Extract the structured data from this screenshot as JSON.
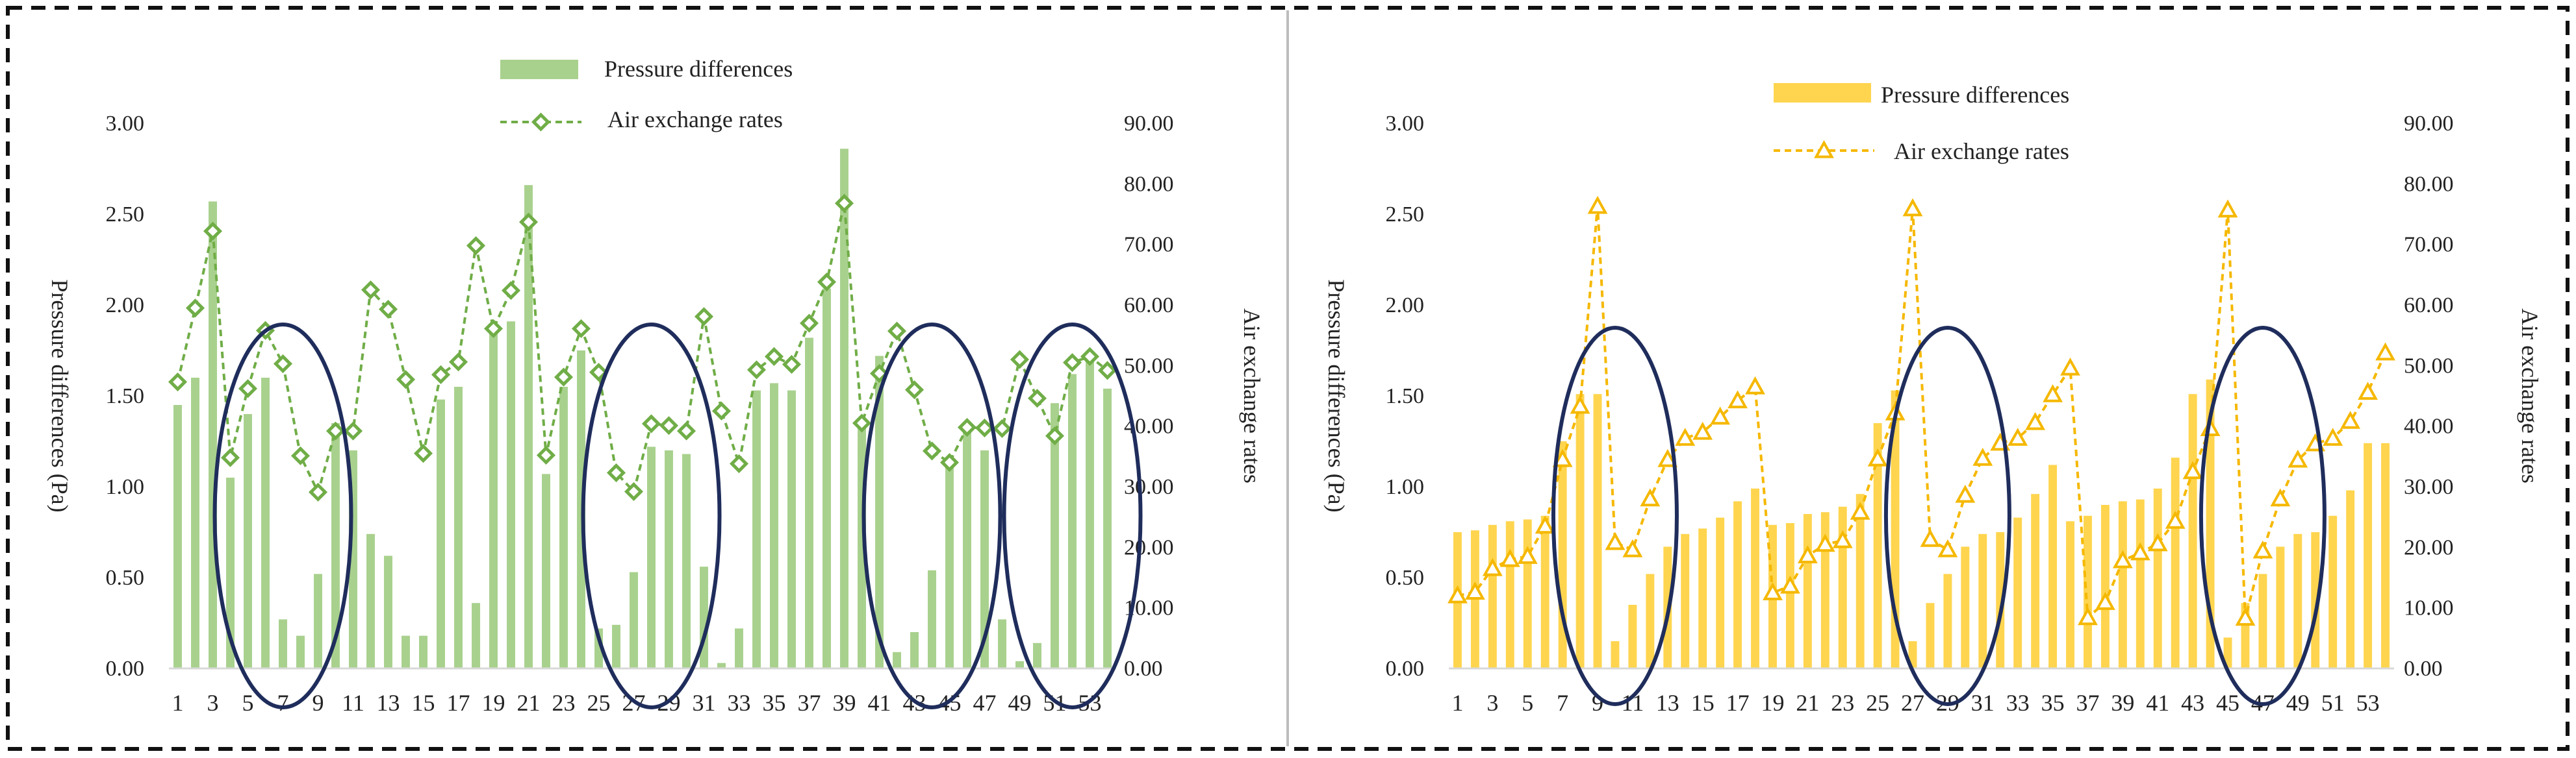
{
  "chart_data": [
    {
      "type": "bar+line",
      "title": "",
      "categories": [
        1,
        2,
        3,
        4,
        5,
        6,
        7,
        8,
        9,
        10,
        11,
        12,
        13,
        14,
        15,
        16,
        17,
        18,
        19,
        20,
        21,
        22,
        23,
        24,
        25,
        26,
        27,
        28,
        29,
        30,
        31,
        32,
        33,
        34,
        35,
        36,
        37,
        38,
        39,
        40,
        41,
        42,
        43,
        44,
        45,
        46,
        47,
        48,
        49,
        50,
        51,
        52,
        53,
        54
      ],
      "xtick_labels": [
        "1",
        "3",
        "5",
        "7",
        "9",
        "11",
        "13",
        "15",
        "17",
        "19",
        "21",
        "23",
        "25",
        "27",
        "29",
        "31",
        "33",
        "35",
        "37",
        "39",
        "41",
        "43",
        "45",
        "47",
        "49",
        "51",
        "53"
      ],
      "series": [
        {
          "name": "Pressure differences",
          "type": "bar",
          "axis": "left",
          "values": [
            1.45,
            1.6,
            2.57,
            1.05,
            1.4,
            1.6,
            0.27,
            0.18,
            0.52,
            1.35,
            1.2,
            0.74,
            0.62,
            0.18,
            0.18,
            1.48,
            1.55,
            0.36,
            1.85,
            1.91,
            2.66,
            1.07,
            1.55,
            1.75,
            0.22,
            0.24,
            0.53,
            1.22,
            1.2,
            1.18,
            0.56,
            0.03,
            0.22,
            1.53,
            1.57,
            1.53,
            1.82,
            2.09,
            2.86,
            1.32,
            1.72,
            0.09,
            0.2,
            0.54,
            1.16,
            1.3,
            1.2,
            0.27,
            0.04,
            0.14,
            1.46,
            1.62,
            1.72,
            1.54
          ]
        },
        {
          "name": "Air exchange rates",
          "type": "line",
          "axis": "right",
          "values": [
            47.3,
            59.5,
            72.2,
            34.8,
            46.2,
            55.8,
            50.3,
            35.1,
            29.1,
            39.2,
            39.2,
            62.5,
            59.3,
            47.7,
            35.5,
            48.5,
            50.6,
            69.8,
            56.1,
            62.4,
            73.7,
            35.2,
            48.1,
            56.1,
            48.9,
            32.3,
            29.2,
            40.4,
            40.1,
            39.2,
            58.1,
            42.5,
            33.8,
            49.3,
            51.5,
            50.2,
            57.0,
            63.8,
            76.8,
            40.5,
            48.7,
            55.7,
            46.0,
            35.9,
            34.0,
            39.8,
            39.7,
            39.6,
            51.0,
            44.6,
            38.4,
            50.5,
            51.5,
            49.2
          ]
        }
      ],
      "yleft": {
        "label": "Pressure differences (Pa)",
        "lim": [
          0,
          3
        ],
        "ticks": [
          "0.00",
          "0.50",
          "1.00",
          "1.50",
          "2.00",
          "2.50",
          "3.00"
        ]
      },
      "yright": {
        "label": "Air exchange rates",
        "lim": [
          0,
          90
        ],
        "ticks": [
          "0.00",
          "10.00",
          "20.00",
          "30.00",
          "40.00",
          "50.00",
          "60.00",
          "70.00",
          "80.00",
          "90.00"
        ]
      },
      "colors": {
        "bar": "#a9d18e",
        "line": "#70ad47",
        "ellipse": "#1f2d5c"
      },
      "marker": "diamond",
      "legend_position": "top-center",
      "highlight_ellipses_at_categories": [
        7,
        28,
        44,
        52
      ]
    },
    {
      "type": "bar+line",
      "title": "",
      "categories": [
        1,
        2,
        3,
        4,
        5,
        6,
        7,
        8,
        9,
        10,
        11,
        12,
        13,
        14,
        15,
        16,
        17,
        18,
        19,
        20,
        21,
        22,
        23,
        24,
        25,
        26,
        27,
        28,
        29,
        30,
        31,
        32,
        33,
        34,
        35,
        36,
        37,
        38,
        39,
        40,
        41,
        42,
        43,
        44,
        45,
        46,
        47,
        48,
        49,
        50,
        51,
        52,
        53,
        54
      ],
      "xtick_labels": [
        "1",
        "3",
        "5",
        "7",
        "9",
        "11",
        "13",
        "15",
        "17",
        "19",
        "21",
        "23",
        "25",
        "27",
        "29",
        "31",
        "33",
        "35",
        "37",
        "39",
        "41",
        "43",
        "45",
        "47",
        "49",
        "51",
        "53"
      ],
      "series": [
        {
          "name": "Pressure differences",
          "type": "bar",
          "axis": "left",
          "values": [
            0.75,
            0.76,
            0.79,
            0.81,
            0.82,
            0.84,
            1.25,
            1.51,
            1.51,
            0.15,
            0.35,
            0.52,
            0.67,
            0.74,
            0.77,
            0.83,
            0.92,
            0.99,
            0.79,
            0.8,
            0.85,
            0.86,
            0.89,
            0.96,
            1.35,
            1.53,
            0.15,
            0.36,
            0.52,
            0.67,
            0.74,
            0.75,
            0.83,
            0.96,
            1.12,
            0.81,
            0.84,
            0.9,
            0.92,
            0.93,
            0.99,
            1.16,
            1.51,
            1.59,
            0.17,
            0.36,
            0.52,
            0.67,
            0.74,
            0.75,
            0.84,
            0.98,
            1.24,
            1.24
          ]
        },
        {
          "name": "Air exchange rates",
          "type": "line",
          "axis": "right",
          "values": [
            12.0,
            12.6,
            16.5,
            18.0,
            18.5,
            23.5,
            34.5,
            43.3,
            76.3,
            20.8,
            19.6,
            28.0,
            34.5,
            38.0,
            39.0,
            41.5,
            44.2,
            46.5,
            12.5,
            13.6,
            18.6,
            20.5,
            21.1,
            25.8,
            34.6,
            42.2,
            75.9,
            21.3,
            19.6,
            28.6,
            34.7,
            37.2,
            38.0,
            40.6,
            45.2,
            49.6,
            8.4,
            10.9,
            17.8,
            19.1,
            20.6,
            24.3,
            32.5,
            39.6,
            75.7,
            8.3,
            19.4,
            28.0,
            34.4,
            37.1,
            38.0,
            40.8,
            45.6,
            52.1
          ]
        }
      ],
      "yleft": {
        "label": "Pressure differences (Pa)",
        "lim": [
          0,
          3
        ],
        "ticks": [
          "0.00",
          "0.50",
          "1.00",
          "1.50",
          "2.00",
          "2.50",
          "3.00"
        ]
      },
      "yright": {
        "label": "Air exchange rates",
        "lim": [
          0,
          90
        ],
        "ticks": [
          "0.00",
          "10.00",
          "20.00",
          "30.00",
          "40.00",
          "50.00",
          "60.00",
          "70.00",
          "80.00",
          "90.00"
        ]
      },
      "colors": {
        "bar": "#ffd54f",
        "line": "#f5b800",
        "ellipse": "#1f2d5c"
      },
      "marker": "triangle",
      "legend_position": "top-center",
      "highlight_ellipses_at_categories": [
        10,
        29,
        47
      ]
    }
  ]
}
